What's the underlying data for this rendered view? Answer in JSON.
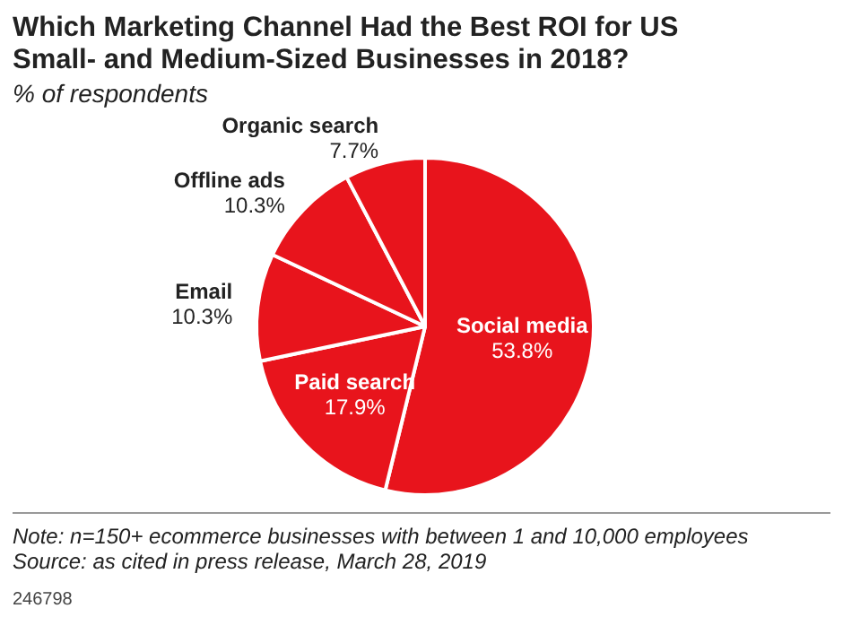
{
  "chart_data": {
    "type": "pie",
    "title": "Which Marketing Channel Had the Best ROI for US Small- and Medium-Sized Businesses in 2018?",
    "subtitle": "% of respondents",
    "categories": [
      "Social media",
      "Paid search",
      "Email",
      "Offline ads",
      "Organic search"
    ],
    "values": [
      53.8,
      17.9,
      10.3,
      10.3,
      7.7
    ],
    "value_labels": [
      "53.8%",
      "17.9%",
      "10.3%",
      "10.3%",
      "7.7%"
    ],
    "colors": [
      "#e8141c",
      "#e8141c",
      "#e8141c",
      "#e8141c",
      "#e8141c"
    ],
    "legend": false,
    "annotations": [
      "Note: n=150+ ecommerce businesses with between 1 and 10,000 employees",
      "Source: as cited in press release, March 28, 2019",
      "246798"
    ]
  }
}
